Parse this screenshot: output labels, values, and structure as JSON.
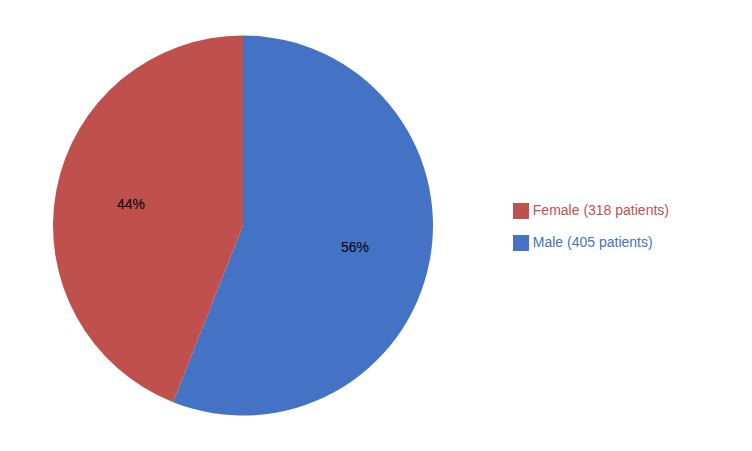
{
  "chart_data": {
    "type": "pie",
    "categories": [
      "Male (405 patients)",
      "Female (318 patients)"
    ],
    "values": [
      56,
      44
    ],
    "value_labels": [
      "56%",
      "44%"
    ],
    "colors": [
      "#4472C4",
      "#C0504D"
    ],
    "data_labels": true,
    "legend": "right"
  }
}
